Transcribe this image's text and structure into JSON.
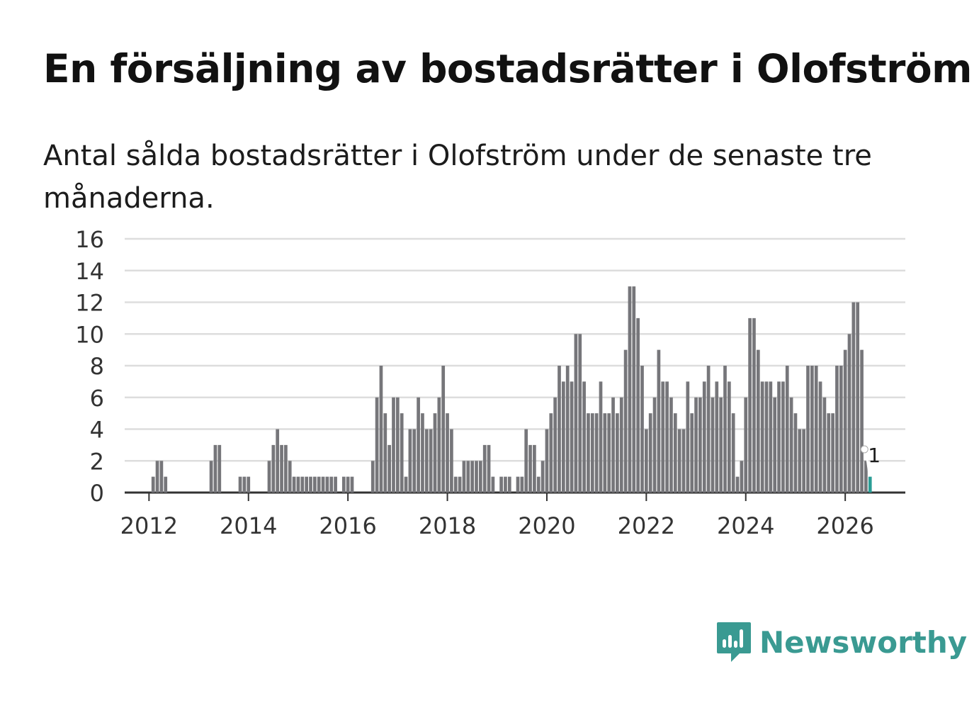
{
  "header": {
    "title": "En försäljning av bostadsrätter i Olofström",
    "subtitle": "Antal sålda bostadsrätter i Olofström under de senaste tre månaderna."
  },
  "brand": {
    "name": "Newsworthy",
    "color": "#3a9a92",
    "icon": "newsworthy-logo-icon"
  },
  "colors": {
    "bar": "#76767a",
    "highlight": "#2a9d95",
    "grid": "#dddddd",
    "axis": "#333333"
  },
  "chart_data": {
    "type": "bar",
    "title": "En försäljning av bostadsrätter i Olofström",
    "xlabel": "",
    "ylabel": "",
    "start": {
      "year": 2011,
      "month": 12
    },
    "ylim": [
      0,
      16
    ],
    "yticks": [
      0,
      2,
      4,
      6,
      8,
      10,
      12,
      14,
      16
    ],
    "xticks": [
      "2012",
      "2014",
      "2016",
      "2018",
      "2020",
      "2022",
      "2024",
      "2026"
    ],
    "grid": true,
    "legend": "none",
    "annotation": {
      "text": "1",
      "target": "last"
    },
    "values": [
      0,
      0,
      1,
      2,
      2,
      1,
      0,
      0,
      0,
      0,
      0,
      0,
      0,
      0,
      0,
      0,
      2,
      3,
      3,
      0,
      0,
      0,
      0,
      1,
      1,
      1,
      0,
      0,
      0,
      0,
      2,
      3,
      4,
      3,
      3,
      2,
      1,
      1,
      1,
      1,
      1,
      1,
      1,
      1,
      1,
      1,
      1,
      0,
      1,
      1,
      1,
      0,
      0,
      0,
      0,
      2,
      6,
      8,
      5,
      3,
      6,
      6,
      5,
      1,
      4,
      4,
      6,
      5,
      4,
      4,
      5,
      6,
      8,
      5,
      4,
      1,
      1,
      2,
      2,
      2,
      2,
      2,
      3,
      3,
      1,
      0,
      1,
      1,
      1,
      0,
      1,
      1,
      4,
      3,
      3,
      1,
      2,
      4,
      5,
      6,
      8,
      7,
      8,
      7,
      10,
      10,
      7,
      5,
      5,
      5,
      7,
      5,
      5,
      6,
      5,
      6,
      9,
      13,
      13,
      11,
      8,
      4,
      5,
      6,
      9,
      7,
      7,
      6,
      5,
      4,
      4,
      7,
      5,
      6,
      6,
      7,
      8,
      6,
      7,
      6,
      8,
      7,
      5,
      1,
      2,
      6,
      11,
      11,
      9,
      7,
      7,
      7,
      6,
      7,
      7,
      8,
      6,
      5,
      4,
      4,
      8,
      8,
      8,
      7,
      6,
      5,
      5,
      8,
      8,
      9,
      10,
      12,
      12,
      9,
      2,
      1
    ]
  }
}
